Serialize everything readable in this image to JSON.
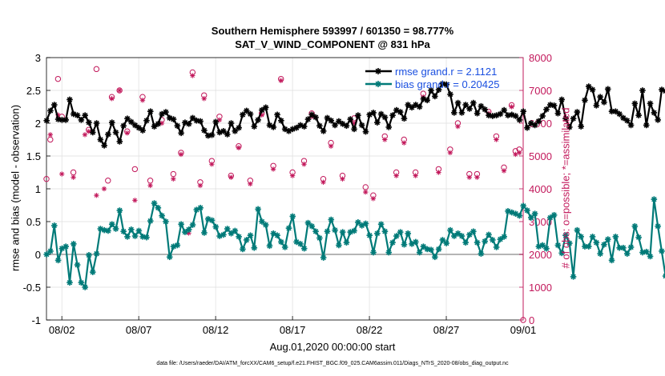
{
  "chart_data": {
    "type": "line",
    "title": "Southern Hemisphere 593997 / 601350 = 98.777%",
    "subtitle": "SAT_V_WIND_COMPONENT @ 831 hPa",
    "xlabel": "Aug.01,2020 00:00:00 start",
    "ylabel": "rmse and bias (model - observation)",
    "ylabel_right": "# of obs: o=possible; *=assimilated",
    "footnote": "data file: /Users/raeder/DAI/ATM_forcXX/CAM6_setup/f.e21.FHIST_BGC.f09_025.CAM6assim.011/Diags_NTrS_2020-08/obs_diag_output.nc",
    "xlim": [
      0,
      31
    ],
    "ylim": [
      -1,
      3
    ],
    "ylim_right": [
      0,
      8000
    ],
    "x_ticks": [
      1,
      6,
      11,
      16,
      21,
      26,
      31
    ],
    "x_tick_labels": [
      "08/02",
      "08/07",
      "08/12",
      "08/17",
      "08/22",
      "08/27",
      "09/01"
    ],
    "y_ticks": [
      -1,
      -0.5,
      0,
      0.5,
      1,
      1.5,
      2,
      2.5,
      3
    ],
    "y_tick_labels": [
      "-1",
      "-0.5",
      "0",
      "0.5",
      "1",
      "1.5",
      "2",
      "2.5",
      "3"
    ],
    "y_ticks_right": [
      0,
      1000,
      2000,
      3000,
      4000,
      5000,
      6000,
      7000,
      8000
    ],
    "y_tick_labels_right": [
      "0",
      "1000",
      "2000",
      "3000",
      "4000",
      "5000",
      "6000",
      "7000",
      "8000"
    ],
    "grid": true,
    "legend_position": "top-right",
    "time_step_days": 0.25,
    "series": [
      {
        "name": "rmse grand.r = 2.1121",
        "color": "#000000",
        "axis": "left",
        "marker": "asterisk",
        "values": [
          2.04,
          2.19,
          2.28,
          2.06,
          2.05,
          2.05,
          2.36,
          2.14,
          2.12,
          2.05,
          2.12,
          2.01,
          1.86,
          2.0,
          1.75,
          1.66,
          1.83,
          2.01,
          1.86,
          1.72,
          1.96,
          2.07,
          2.02,
          1.97,
          1.93,
          1.89,
          2.04,
          2.18,
          1.95,
          1.99,
          2.14,
          2.17,
          2.08,
          2.06,
          1.96,
          1.85,
          2.01,
          1.99,
          2.08,
          2.04,
          2.03,
          1.89,
          1.81,
          1.82,
          2.02,
          1.86,
          1.88,
          1.83,
          2.0,
          1.88,
          1.93,
          2.13,
          2.19,
          2.14,
          1.95,
          2.05,
          2.2,
          2.24,
          1.97,
          1.94,
          2.13,
          2.04,
          1.91,
          1.88,
          1.91,
          1.93,
          1.97,
          1.95,
          2.06,
          2.13,
          2.09,
          1.96,
          1.88,
          2.08,
          2.04,
          1.97,
          2.03,
          1.99,
          1.96,
          2.06,
          1.91,
          2.12,
          1.97,
          1.87,
          2.13,
          2.16,
          2.01,
          2.14,
          2.09,
          1.94,
          2.12,
          2.2,
          2.17,
          2.07,
          2.28,
          2.24,
          2.28,
          2.25,
          2.37,
          2.35,
          2.5,
          2.41,
          2.51,
          2.6,
          2.59,
          2.44,
          2.16,
          2.31,
          2.16,
          2.28,
          2.22,
          2.31,
          2.15,
          2.26,
          2.21,
          2.12,
          2.11,
          2.12,
          2.14,
          2.2,
          2.12,
          2.13,
          2.11,
          2.05,
          2.18,
          1.93,
          2.0,
          1.97,
          2.03,
          2.11,
          2.21,
          2.28,
          2.27,
          2.15,
          2.36,
          2.07,
          1.94,
          2.07,
          2.17,
          1.95,
          2.35,
          2.56,
          2.51,
          2.27,
          2.4,
          2.32,
          2.52,
          2.18,
          2.18,
          2.14,
          2.08,
          2.04,
          1.97,
          2.3,
          2.12,
          2.5,
          1.97,
          2.3,
          2.16,
          2.05,
          2.51,
          2.49,
          2.3,
          2.21,
          2.43,
          2.0,
          2.09,
          1.89,
          1.85,
          2.32,
          2.65,
          2.15,
          2.23,
          2.3,
          2.52,
          2.56,
          2.61,
          2.4,
          2.23,
          1.98,
          2.07,
          2.36,
          2.05,
          2.18,
          2.05,
          2.4,
          2.02,
          2.2,
          2.37,
          1.9,
          2.08,
          2.21,
          2.24,
          1.88,
          2.13,
          2.21,
          2.25,
          2.29,
          2.39,
          2.32,
          2.32,
          2.1,
          2.05
        ]
      },
      {
        "name": "bias grand.r = 0.20425",
        "color": "#007a78",
        "axis": "left",
        "marker": "asterisk",
        "values": [
          0.0,
          0.05,
          0.44,
          -0.09,
          0.09,
          0.12,
          -0.43,
          0.16,
          -0.16,
          -0.43,
          -0.5,
          -0.01,
          -0.27,
          0.01,
          0.39,
          0.37,
          0.36,
          0.46,
          0.39,
          0.67,
          0.35,
          0.27,
          0.38,
          0.28,
          0.36,
          0.27,
          0.26,
          0.51,
          0.78,
          0.71,
          0.59,
          0.5,
          -0.04,
          0.12,
          0.14,
          0.46,
          0.34,
          0.38,
          0.45,
          0.68,
          0.71,
          0.33,
          0.54,
          0.52,
          0.42,
          0.28,
          0.3,
          0.39,
          0.32,
          0.36,
          0.27,
          0.08,
          0.22,
          0.29,
          0.1,
          0.69,
          0.5,
          0.45,
          0.13,
          0.32,
          0.29,
          0.19,
          0.11,
          0.4,
          0.58,
          0.19,
          0.16,
          0.09,
          0.48,
          0.43,
          0.35,
          0.25,
          -0.05,
          0.35,
          0.53,
          0.37,
          0.14,
          0.34,
          0.18,
          0.34,
          0.36,
          0.49,
          0.44,
          0.47,
          0.29,
          0.03,
          0.32,
          0.46,
          0.35,
          0.03,
          0.18,
          0.28,
          0.34,
          0.15,
          0.32,
          0.16,
          0.19,
          0.03,
          0.12,
          0.08,
          0.07,
          -0.04,
          0.08,
          0.22,
          0.17,
          0.37,
          0.28,
          0.32,
          0.28,
          0.18,
          0.3,
          0.35,
          0.18,
          0.01,
          0.2,
          0.3,
          0.22,
          0.11,
          0.23,
          0.27,
          0.66,
          0.64,
          0.62,
          0.59,
          0.74,
          0.67,
          0.56,
          0.62,
          0.12,
          0.14,
          0.09,
          0.56,
          0.6,
          0.14,
          0.02,
          0.29,
          0.17,
          -0.34,
          0.37,
          0.27,
          0.12,
          0.12,
          0.27,
          0.18,
          0.01,
          0.15,
          0.23,
          -0.09,
          0.27,
          0.1,
          0.1,
          0.01,
          0.11,
          0.43,
          0.26,
          0.03,
          0.04,
          -0.03,
          0.84,
          0.43,
          0.05,
          -0.33,
          -0.2,
          -0.07,
          0.01,
          -0.26,
          -0.1,
          -0.13,
          -0.42,
          0.2,
          0.14,
          0.2,
          0.15,
          0.14,
          0.13,
          0.04,
          -0.03,
          0.22,
          0.11,
          0.11,
          -0.01,
          -0.12,
          0.46,
          0.28,
          0.02,
          0.0,
          -0.09,
          -0.06,
          -0.1,
          0.08,
          -0.08,
          0.26,
          0.22,
          0.28,
          0.11,
          0.2,
          0.14,
          0.06,
          0.2,
          0.15,
          -0.42,
          0.01,
          0.1,
          0.39
        ]
      }
    ],
    "obs_possible": {
      "marker": "o",
      "color": "#c2185b",
      "axis": "right",
      "x": [
        0.0,
        0.25,
        0.75,
        1.0,
        1.75,
        2.75,
        3.25,
        4.0,
        4.25,
        4.75,
        5.25,
        5.75,
        6.25,
        6.75,
        7.5,
        8.25,
        8.75,
        9.5,
        10.0,
        10.25,
        10.75,
        11.25,
        12.0,
        12.5,
        13.25,
        14.0,
        14.75,
        15.25,
        16.0,
        16.75,
        17.25,
        18.0,
        18.5,
        19.25,
        20.0,
        20.75,
        21.25,
        22.0,
        22.75,
        23.25,
        24.0,
        24.5,
        25.5,
        26.25,
        26.75,
        27.5,
        28.0,
        28.75,
        29.25,
        29.75,
        30.25,
        30.5,
        30.75,
        31.0
      ],
      "y": [
        4300,
        5500,
        7350,
        6200,
        4500,
        5800,
        7650,
        4250,
        6800,
        7000,
        5750,
        4600,
        6800,
        4250,
        6100,
        4450,
        5100,
        7550,
        4200,
        6850,
        4850,
        6200,
        4400,
        5300,
        4250,
        6300,
        4700,
        7350,
        4500,
        4850,
        6300,
        4300,
        5400,
        4400,
        6150,
        4050,
        3800,
        5600,
        4500,
        5500,
        4500,
        6900,
        4600,
        5200,
        6000,
        4450,
        4450,
        6350,
        5600,
        4650,
        6550,
        5150,
        5200,
        0
      ]
    },
    "obs_assimilated": {
      "marker": "asterisk",
      "color": "#c2185b",
      "axis": "right",
      "x": [
        0.25,
        0.75,
        1.0,
        1.75,
        2.5,
        2.75,
        3.25,
        3.75,
        4.25,
        4.75,
        5.25,
        5.75,
        6.25,
        6.75,
        7.5,
        8.25,
        8.75,
        9.25,
        9.5,
        10.0,
        10.25,
        10.75,
        11.25,
        12.0,
        12.5,
        13.25,
        14.0,
        14.75,
        15.25,
        16.0,
        16.75,
        17.25,
        18.0,
        18.5,
        19.25,
        20.0,
        20.75,
        21.25,
        22.0,
        22.75,
        23.25,
        24.0,
        24.5,
        25.5,
        26.25,
        26.75,
        27.5,
        28.0,
        28.75,
        29.25,
        29.75,
        30.25,
        30.5,
        30.75
      ],
      "y": [
        5650,
        6250,
        4450,
        4350,
        5650,
        5750,
        3800,
        4000,
        6750,
        7000,
        5700,
        3650,
        6700,
        4100,
        6000,
        4300,
        5050,
        2650,
        7450,
        4100,
        6750,
        4750,
        6100,
        4350,
        5250,
        4150,
        6250,
        4600,
        7300,
        4400,
        4750,
        6200,
        4200,
        5300,
        4300,
        6000,
        3900,
        3700,
        5500,
        4400,
        5400,
        4400,
        6800,
        4500,
        5100,
        5900,
        4350,
        4350,
        6300,
        5500,
        4550,
        6500,
        5050,
        5100
      ]
    }
  }
}
